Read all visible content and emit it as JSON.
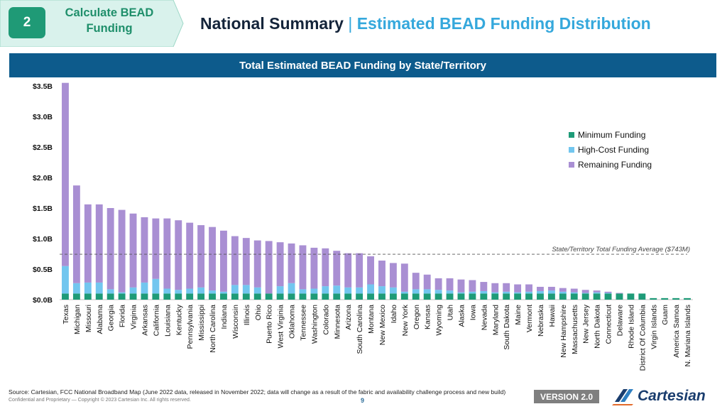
{
  "header": {
    "step_number": "2",
    "step_label_line1": "Calculate BEAD",
    "step_label_line2": "Funding",
    "title_main": "National Summary",
    "title_separator": "|",
    "title_sub": "Estimated BEAD Funding Distribution"
  },
  "chart_banner": "Total Estimated BEAD Funding by State/Territory",
  "colors": {
    "minimum": "#1e9b78",
    "high_cost": "#72c6ef",
    "remaining": "#a98fd3",
    "banner": "#0d5b8c",
    "step_green": "#1f9a76"
  },
  "chart_data": {
    "type": "bar",
    "stacked": true,
    "title": "Total Estimated BEAD Funding by State/Territory",
    "ylim": [
      0,
      3.5
    ],
    "yunit": "$B",
    "yticks": [
      "$0.0B",
      "$0.5B",
      "$1.0B",
      "$1.5B",
      "$2.0B",
      "$2.5B",
      "$3.0B",
      "$3.5B"
    ],
    "legend_position": "right",
    "categories": [
      "Texas",
      "Michigan",
      "Missouri",
      "Alabama",
      "Georgia",
      "Florida",
      "Virginia",
      "Arkansas",
      "California",
      "Louisiana",
      "Kentucky",
      "Pennsylvania",
      "Mississippi",
      "North Carolina",
      "Indiana",
      "Wisconsin",
      "Illinois",
      "Ohio",
      "Puerto Rico",
      "West Virginia",
      "Oklahoma",
      "Tennessee",
      "Washington",
      "Colorado",
      "Minnesota",
      "Arizona",
      "South Carolina",
      "Montana",
      "New Mexico",
      "Idaho",
      "New York",
      "Oregon",
      "Kansas",
      "Wyoming",
      "Utah",
      "Alaska",
      "Iowa",
      "Nevada",
      "Maryland",
      "South Dakota",
      "Maine",
      "Vermont",
      "Nebraska",
      "Hawaii",
      "New Hampshire",
      "Massachusetts",
      "New Jersey",
      "North Dakota",
      "Connecticut",
      "Delaware",
      "Rhode Island",
      "District Of Columbia",
      "Virgin Islands",
      "Guam",
      "America Samoa",
      "N. Mariana Islands"
    ],
    "series": [
      {
        "name": "Minimum Funding",
        "values": [
          0.1,
          0.1,
          0.1,
          0.1,
          0.1,
          0.1,
          0.1,
          0.1,
          0.1,
          0.1,
          0.1,
          0.1,
          0.1,
          0.1,
          0.1,
          0.1,
          0.1,
          0.1,
          0.1,
          0.1,
          0.1,
          0.1,
          0.1,
          0.1,
          0.1,
          0.1,
          0.1,
          0.1,
          0.1,
          0.1,
          0.1,
          0.1,
          0.1,
          0.1,
          0.1,
          0.1,
          0.1,
          0.1,
          0.1,
          0.1,
          0.1,
          0.1,
          0.1,
          0.1,
          0.1,
          0.1,
          0.1,
          0.1,
          0.1,
          0.1,
          0.1,
          0.1,
          0.025,
          0.025,
          0.025,
          0.025
        ]
      },
      {
        "name": "High-Cost Funding",
        "values": [
          0.45,
          0.17,
          0.18,
          0.18,
          0.07,
          0.02,
          0.1,
          0.18,
          0.24,
          0.08,
          0.06,
          0.08,
          0.1,
          0.05,
          0.03,
          0.14,
          0.14,
          0.1,
          0.0,
          0.12,
          0.17,
          0.07,
          0.08,
          0.12,
          0.13,
          0.1,
          0.1,
          0.15,
          0.12,
          0.1,
          0.03,
          0.07,
          0.07,
          0.06,
          0.05,
          0.02,
          0.03,
          0.04,
          0.02,
          0.03,
          0.02,
          0.03,
          0.04,
          0.05,
          0.03,
          0.02,
          0.01,
          0.02,
          0.01,
          0.0,
          0.0,
          0.0,
          0.0,
          0.0,
          0.0,
          0.0
        ]
      },
      {
        "name": "Remaining Funding",
        "values": [
          3.0,
          1.6,
          1.28,
          1.28,
          1.33,
          1.35,
          1.21,
          1.07,
          0.99,
          1.15,
          1.14,
          1.08,
          1.02,
          1.04,
          1.0,
          0.8,
          0.77,
          0.77,
          0.86,
          0.72,
          0.65,
          0.72,
          0.67,
          0.62,
          0.57,
          0.56,
          0.56,
          0.46,
          0.42,
          0.4,
          0.46,
          0.27,
          0.24,
          0.19,
          0.2,
          0.21,
          0.19,
          0.15,
          0.15,
          0.14,
          0.13,
          0.12,
          0.07,
          0.06,
          0.06,
          0.06,
          0.05,
          0.03,
          0.02,
          0.01,
          0.0,
          0.0,
          0.0,
          0.0,
          0.0,
          0.0
        ]
      }
    ],
    "average_line": {
      "value": 0.743,
      "label": "State/Territory Total Funding Average ($743M)"
    }
  },
  "footer": {
    "source": "Source: Cartesian, FCC National Broadband Map (June 2022 data, released in November 2022; data will change as a result of the fabric and availability challenge process and new build)",
    "confidential": "Confidential and Proprietary — Copyright © 2023 Cartesian Inc. All rights reserved.",
    "page_number": "9",
    "version": "VERSION 2.0",
    "logo_text": "Cartesian"
  }
}
